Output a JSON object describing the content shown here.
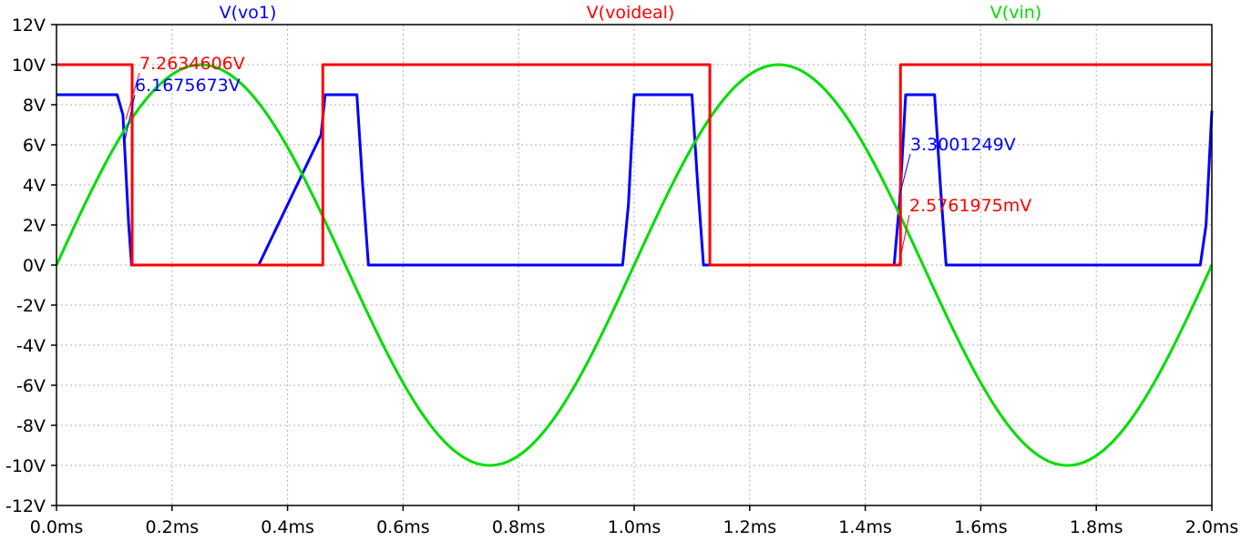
{
  "chart_data": {
    "type": "line",
    "x_unit": "ms",
    "y_unit": "V",
    "xlim": [
      0,
      2.0
    ],
    "ylim": [
      -12,
      12
    ],
    "grid": true,
    "x_ticks": [
      "0.0ms",
      "0.2ms",
      "0.4ms",
      "0.6ms",
      "0.8ms",
      "1.0ms",
      "1.2ms",
      "1.4ms",
      "1.6ms",
      "1.8ms",
      "2.0ms"
    ],
    "y_ticks": [
      "12V",
      "10V",
      "8V",
      "6V",
      "4V",
      "2V",
      "0V",
      "-2V",
      "-4V",
      "-6V",
      "-8V",
      "-10V",
      "-12V"
    ],
    "x_tick_values": [
      0,
      0.2,
      0.4,
      0.6,
      0.8,
      1.0,
      1.2,
      1.4,
      1.6,
      1.8,
      2.0
    ],
    "y_tick_values": [
      12,
      10,
      8,
      6,
      4,
      2,
      0,
      -2,
      -4,
      -6,
      -8,
      -10,
      -12
    ],
    "series": [
      {
        "name": "V(vo1)",
        "color": "#0000ff",
        "x": [
          0,
          0.105,
          0.115,
          0.125,
          0.13,
          0.35,
          0.458,
          0.465,
          0.52,
          0.53,
          0.54,
          0.98,
          0.99,
          1.0,
          1.1,
          1.11,
          1.12,
          1.45,
          1.46,
          1.47,
          1.52,
          1.53,
          1.54,
          1.98,
          1.99,
          2.0
        ],
        "y": [
          8.5,
          8.5,
          7.5,
          2.0,
          0.0,
          0.0,
          6.5,
          8.5,
          8.5,
          4.0,
          0.0,
          0.0,
          3.0,
          8.5,
          8.5,
          4.0,
          0.0,
          0.0,
          3.3,
          8.5,
          8.5,
          4.0,
          0.0,
          0.0,
          2.0,
          7.7
        ]
      },
      {
        "name": "V(voideal)",
        "color": "#ff0000",
        "x": [
          0,
          0.131,
          0.131,
          0.461,
          0.461,
          1.131,
          1.131,
          1.461,
          1.461,
          2.0
        ],
        "y": [
          10,
          10,
          0,
          0,
          10,
          10,
          0,
          0,
          10,
          10
        ]
      },
      {
        "name": "V(vin)",
        "color": "#00dd00",
        "function": "10*sin(2*pi*t/1.0)",
        "period_ms": 1.0,
        "amplitude": 10
      }
    ],
    "cursor_labels": [
      {
        "text": "7.2634606V",
        "color": "#ff0000",
        "x": 0.12,
        "y": 7.26
      },
      {
        "text": "6.1675673V",
        "color": "#0000ff",
        "x": 0.118,
        "y": 6.17
      },
      {
        "text": "3.3001249V",
        "color": "#0000ff",
        "x": 1.458,
        "y": 3.3
      },
      {
        "text": "2.5761975mV",
        "color": "#ff0000",
        "x": 1.458,
        "y": 0.0026
      }
    ]
  }
}
